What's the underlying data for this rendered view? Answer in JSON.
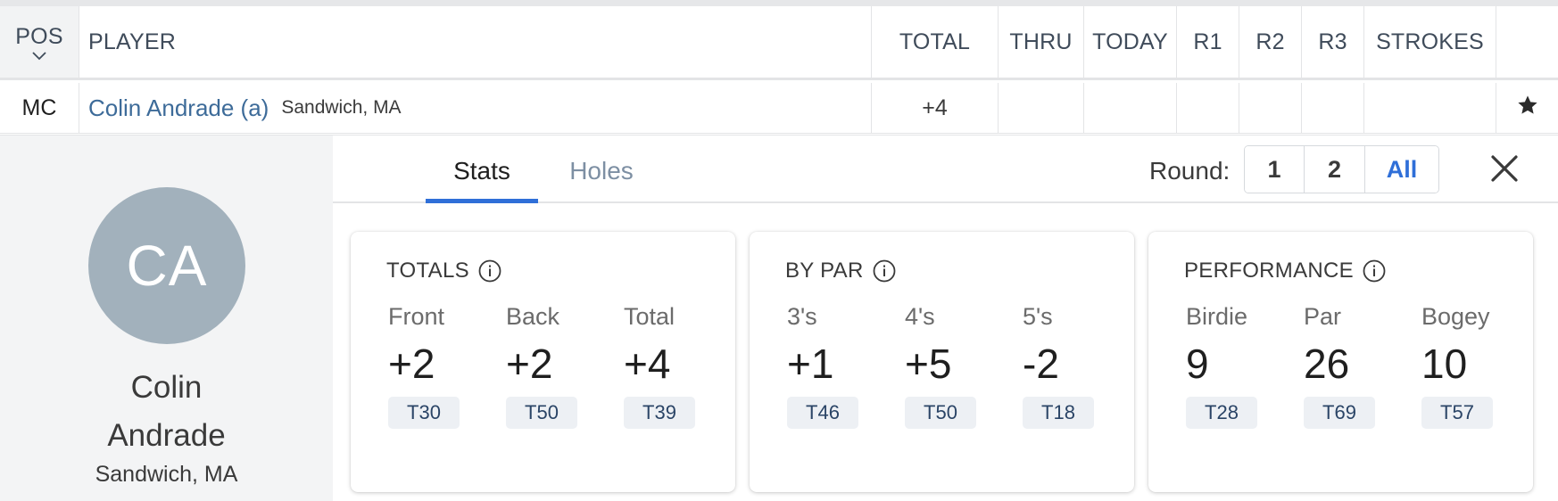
{
  "table": {
    "headers": {
      "pos": "POS",
      "player": "PLAYER",
      "total": "TOTAL",
      "thru": "THRU",
      "today": "TODAY",
      "r1": "R1",
      "r2": "R2",
      "r3": "R3",
      "strokes": "STROKES"
    },
    "row": {
      "pos": "MC",
      "player_name": "Colin Andrade (a)",
      "player_location": "Sandwich, MA",
      "total": "+4",
      "thru": "",
      "today": "",
      "r1": "",
      "r2": "",
      "r3": "",
      "strokes": ""
    }
  },
  "profile": {
    "initials": "CA",
    "first_name": "Colin",
    "last_name": "Andrade",
    "location": "Sandwich, MA"
  },
  "tabs": [
    {
      "label": "Stats",
      "active": true
    },
    {
      "label": "Holes",
      "active": false
    }
  ],
  "round_selector": {
    "label": "Round:",
    "options": [
      "1",
      "2",
      "All"
    ],
    "selected": "All"
  },
  "cards": [
    {
      "title": "TOTALS",
      "stats": [
        {
          "label": "Front",
          "value": "+2",
          "rank": "T30"
        },
        {
          "label": "Back",
          "value": "+2",
          "rank": "T50"
        },
        {
          "label": "Total",
          "value": "+4",
          "rank": "T39"
        }
      ]
    },
    {
      "title": "BY PAR",
      "stats": [
        {
          "label": "3's",
          "value": "+1",
          "rank": "T46"
        },
        {
          "label": "4's",
          "value": "+5",
          "rank": "T50"
        },
        {
          "label": "5's",
          "value": "-2",
          "rank": "T18"
        }
      ]
    },
    {
      "title": "PERFORMANCE",
      "stats": [
        {
          "label": "Birdie",
          "value": "9",
          "rank": "T28"
        },
        {
          "label": "Par",
          "value": "26",
          "rank": "T69"
        },
        {
          "label": "Bogey",
          "value": "10",
          "rank": "T57"
        }
      ]
    }
  ],
  "icons": {
    "sort": "chevron-down-icon",
    "favorite": "star-icon",
    "close": "close-icon",
    "info": "info-icon"
  },
  "colors": {
    "accent": "#2f6fd8",
    "player_link": "#3d6b99",
    "avatar_bg": "#a2b1bc",
    "rank_badge_bg": "#edf0f4"
  }
}
